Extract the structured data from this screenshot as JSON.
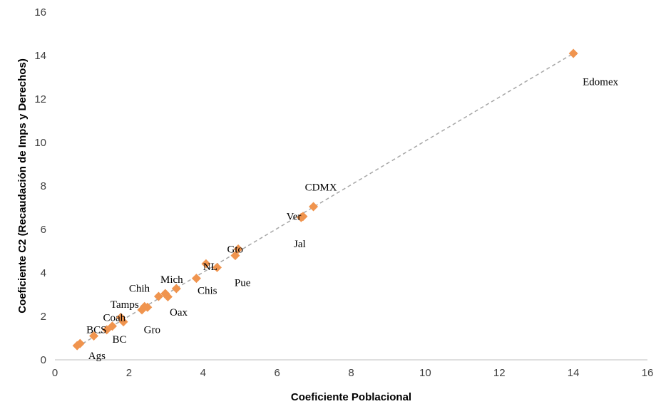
{
  "chart_data": {
    "type": "scatter",
    "title": "",
    "xlabel": "Coeficiente Poblacional",
    "ylabel": "Coeficiente C2 (Recaudación de Imps y Derechos)",
    "xlim": [
      0,
      16
    ],
    "ylim": [
      0,
      16
    ],
    "x_ticks": [
      0,
      2,
      4,
      6,
      8,
      10,
      12,
      14,
      16
    ],
    "y_ticks": [
      0,
      2,
      4,
      6,
      8,
      10,
      12,
      14,
      16
    ],
    "grid": false,
    "legend": "none",
    "trendline": {
      "style": "dashed",
      "from": [
        0.6,
        0.6
      ],
      "to": [
        14.0,
        14.1
      ]
    },
    "colors": {
      "marker": "#F0944E",
      "trendline": "#A6A6A6",
      "axis": "#BFBFBF"
    },
    "points": [
      {
        "x": 0.6,
        "y": 0.65
      },
      {
        "x": 0.68,
        "y": 0.75
      },
      {
        "x": 1.05,
        "y": 1.1
      },
      {
        "x": 1.4,
        "y": 1.38
      },
      {
        "x": 1.55,
        "y": 1.55
      },
      {
        "x": 1.78,
        "y": 1.95
      },
      {
        "x": 1.85,
        "y": 1.75
      },
      {
        "x": 2.35,
        "y": 2.3
      },
      {
        "x": 2.42,
        "y": 2.45
      },
      {
        "x": 2.5,
        "y": 2.42
      },
      {
        "x": 2.8,
        "y": 2.92
      },
      {
        "x": 2.98,
        "y": 3.05
      },
      {
        "x": 3.05,
        "y": 2.9
      },
      {
        "x": 3.28,
        "y": 3.28
      },
      {
        "x": 3.82,
        "y": 3.75
      },
      {
        "x": 4.08,
        "y": 4.42
      },
      {
        "x": 4.38,
        "y": 4.25
      },
      {
        "x": 4.87,
        "y": 4.8
      },
      {
        "x": 4.95,
        "y": 5.1
      },
      {
        "x": 6.65,
        "y": 6.55
      },
      {
        "x": 6.7,
        "y": 6.6
      },
      {
        "x": 6.98,
        "y": 7.05
      },
      {
        "x": 14.0,
        "y": 14.1
      }
    ],
    "labels": [
      {
        "text": "Edomex",
        "x": 14.25,
        "y": 12.8
      },
      {
        "text": "CDMX",
        "x": 6.75,
        "y": 7.95
      },
      {
        "text": "Ver",
        "x": 6.25,
        "y": 6.6
      },
      {
        "text": "Jal",
        "x": 6.45,
        "y": 5.35
      },
      {
        "text": "Gto",
        "x": 4.65,
        "y": 5.1
      },
      {
        "text": "NL",
        "x": 4.0,
        "y": 4.3
      },
      {
        "text": "Pue",
        "x": 4.85,
        "y": 3.55
      },
      {
        "text": "Mich",
        "x": 2.85,
        "y": 3.7
      },
      {
        "text": "Chis",
        "x": 3.85,
        "y": 3.2
      },
      {
        "text": "Chih",
        "x": 2.0,
        "y": 3.3
      },
      {
        "text": "Tamps",
        "x": 1.5,
        "y": 2.55
      },
      {
        "text": "Oax",
        "x": 3.1,
        "y": 2.2
      },
      {
        "text": "Coah",
        "x": 1.3,
        "y": 1.95
      },
      {
        "text": "Gro",
        "x": 2.4,
        "y": 1.4
      },
      {
        "text": "BCS",
        "x": 0.85,
        "y": 1.4
      },
      {
        "text": "BC",
        "x": 1.55,
        "y": 0.95
      },
      {
        "text": "Ags",
        "x": 0.9,
        "y": 0.2
      }
    ]
  }
}
